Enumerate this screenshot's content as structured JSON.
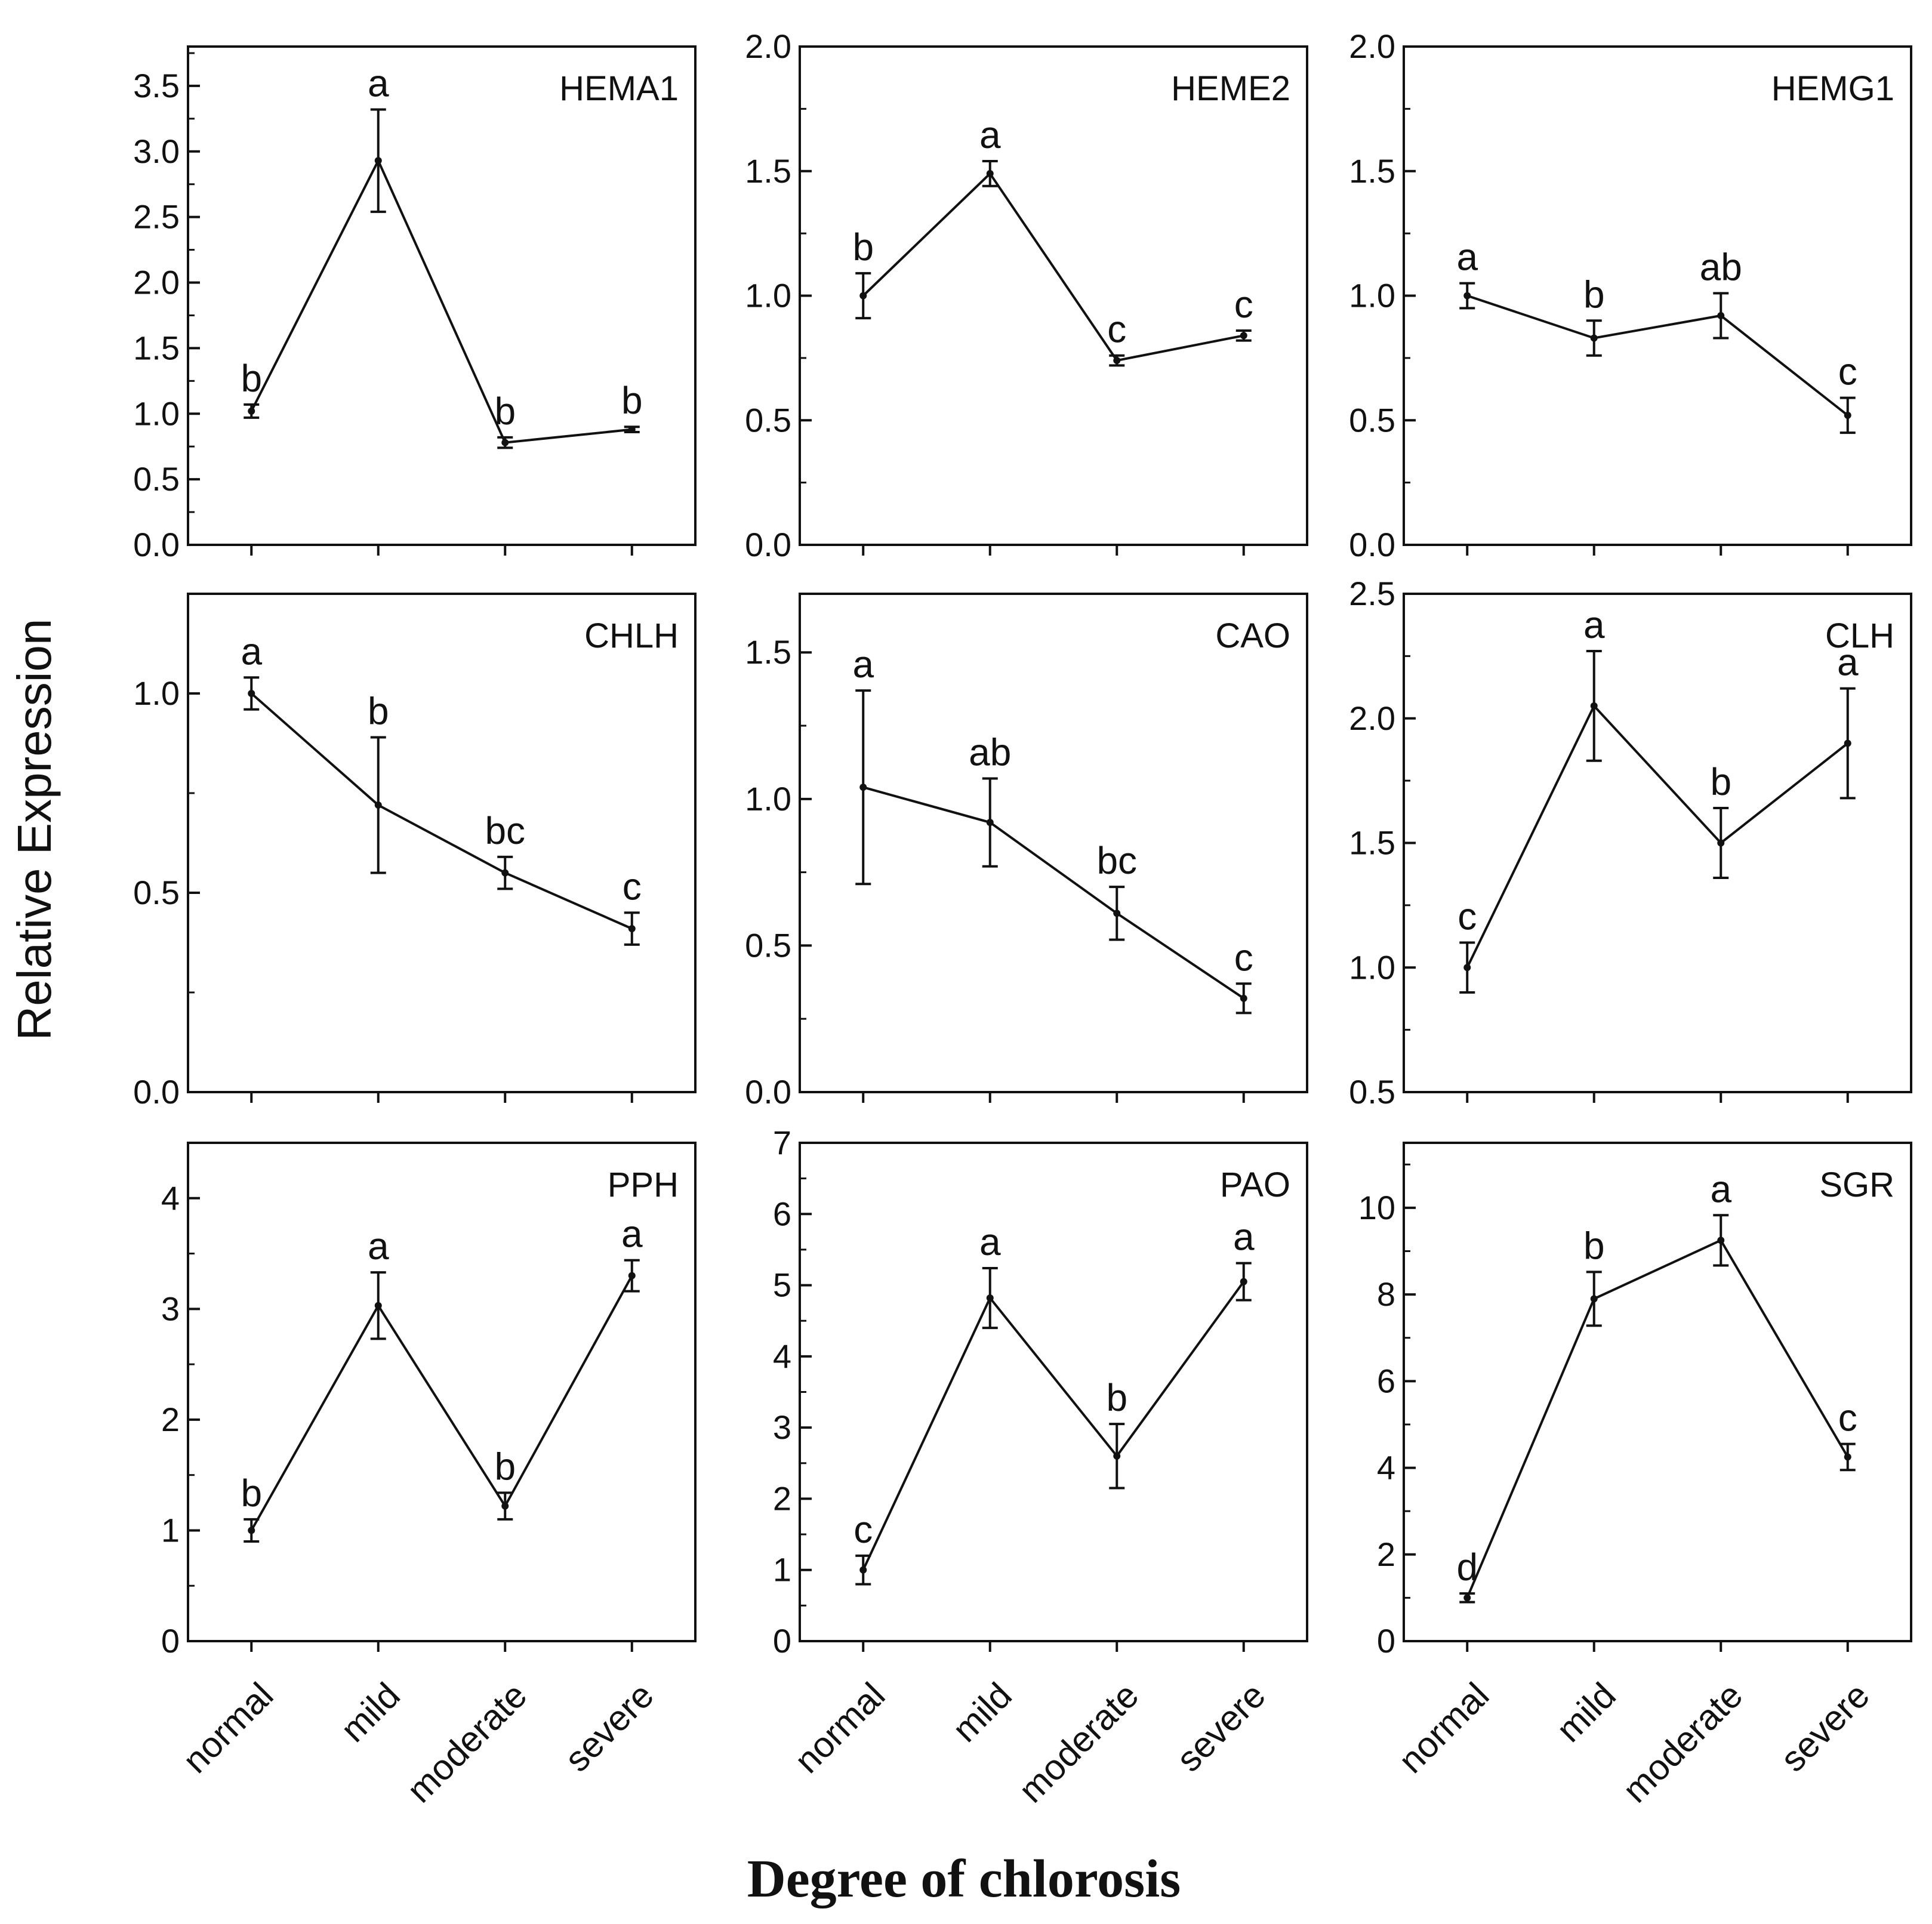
{
  "figure": {
    "ylabel": "Relative Expression",
    "xlabel": "Degree of chlorosis"
  },
  "chart_data": [
    {
      "type": "line",
      "title": "HEMA1",
      "categories": [
        "normal",
        "mild",
        "moderate",
        "severe"
      ],
      "values": [
        1.02,
        2.93,
        0.78,
        0.88
      ],
      "errors": [
        0.05,
        0.39,
        0.04,
        0.02
      ],
      "letters": [
        "b",
        "a",
        "b",
        "b"
      ],
      "ylim": [
        0,
        3.8
      ],
      "yticks": [
        0.0,
        0.5,
        1.0,
        1.5,
        2.0,
        2.5,
        3.0,
        3.5
      ],
      "tick_labels": [
        "0.0",
        "0.5",
        "1.0",
        "1.5",
        "2.0",
        "2.5",
        "3.0",
        "3.5"
      ]
    },
    {
      "type": "line",
      "title": "HEME2",
      "categories": [
        "normal",
        "mild",
        "moderate",
        "severe"
      ],
      "values": [
        1.0,
        1.49,
        0.74,
        0.84
      ],
      "errors": [
        0.09,
        0.05,
        0.02,
        0.02
      ],
      "letters": [
        "b",
        "a",
        "c",
        "c"
      ],
      "ylim": [
        0,
        2.0
      ],
      "yticks": [
        0.0,
        0.5,
        1.0,
        1.5,
        2.0
      ],
      "tick_labels": [
        "0.0",
        "0.5",
        "1.0",
        "1.5",
        "2.0"
      ]
    },
    {
      "type": "line",
      "title": "HEMG1",
      "categories": [
        "normal",
        "mild",
        "moderate",
        "severe"
      ],
      "values": [
        1.0,
        0.83,
        0.92,
        0.52
      ],
      "errors": [
        0.05,
        0.07,
        0.09,
        0.07
      ],
      "letters": [
        "a",
        "b",
        "ab",
        "c"
      ],
      "ylim": [
        0,
        2.0
      ],
      "yticks": [
        0.0,
        0.5,
        1.0,
        1.5,
        2.0
      ],
      "tick_labels": [
        "0.0",
        "0.5",
        "1.0",
        "1.5",
        "2.0"
      ]
    },
    {
      "type": "line",
      "title": "CHLH",
      "categories": [
        "normal",
        "mild",
        "moderate",
        "severe"
      ],
      "values": [
        1.0,
        0.72,
        0.55,
        0.41
      ],
      "errors": [
        0.04,
        0.17,
        0.04,
        0.04
      ],
      "letters": [
        "a",
        "b",
        "bc",
        "c"
      ],
      "ylim": [
        0,
        1.25
      ],
      "yticks": [
        0.0,
        0.5,
        1.0
      ],
      "tick_labels": [
        "0.0",
        "0.5",
        "1.0"
      ]
    },
    {
      "type": "line",
      "title": "CAO",
      "categories": [
        "normal",
        "mild",
        "moderate",
        "severe"
      ],
      "values": [
        1.04,
        0.92,
        0.61,
        0.32
      ],
      "errors": [
        0.33,
        0.15,
        0.09,
        0.05
      ],
      "letters": [
        "a",
        "ab",
        "bc",
        "c"
      ],
      "ylim": [
        0,
        1.7
      ],
      "yticks": [
        0.0,
        0.5,
        1.0,
        1.5
      ],
      "tick_labels": [
        "0.0",
        "0.5",
        "1.0",
        "1.5"
      ]
    },
    {
      "type": "line",
      "title": "CLH",
      "categories": [
        "normal",
        "mild",
        "moderate",
        "severe"
      ],
      "values": [
        1.0,
        2.05,
        1.5,
        1.9
      ],
      "errors": [
        0.1,
        0.22,
        0.14,
        0.22
      ],
      "letters": [
        "c",
        "a",
        "b",
        "a"
      ],
      "ylim": [
        0.5,
        2.5
      ],
      "yticks": [
        0.5,
        1.0,
        1.5,
        2.0,
        2.5
      ],
      "tick_labels": [
        "0.5",
        "1.0",
        "1.5",
        "2.0",
        "2.5"
      ]
    },
    {
      "type": "line",
      "title": "PPH",
      "categories": [
        "normal",
        "mild",
        "moderate",
        "severe"
      ],
      "values": [
        1.0,
        3.03,
        1.22,
        3.3
      ],
      "errors": [
        0.1,
        0.3,
        0.12,
        0.14
      ],
      "letters": [
        "b",
        "a",
        "b",
        "a"
      ],
      "ylim": [
        0,
        4.5
      ],
      "yticks": [
        0,
        1,
        2,
        3,
        4
      ],
      "tick_labels": [
        "0",
        "1",
        "2",
        "3",
        "4"
      ]
    },
    {
      "type": "line",
      "title": "PAO",
      "categories": [
        "normal",
        "mild",
        "moderate",
        "severe"
      ],
      "values": [
        1.0,
        4.82,
        2.6,
        5.05
      ],
      "errors": [
        0.2,
        0.42,
        0.45,
        0.26
      ],
      "letters": [
        "c",
        "a",
        "b",
        "a"
      ],
      "ylim": [
        0,
        7
      ],
      "yticks": [
        0,
        1,
        2,
        3,
        4,
        5,
        6,
        7
      ],
      "tick_labels": [
        "0",
        "1",
        "2",
        "3",
        "4",
        "5",
        "6",
        "7"
      ]
    },
    {
      "type": "line",
      "title": "SGR",
      "categories": [
        "normal",
        "mild",
        "moderate",
        "severe"
      ],
      "values": [
        1.0,
        7.9,
        9.25,
        4.25
      ],
      "errors": [
        0.1,
        0.62,
        0.58,
        0.3
      ],
      "letters": [
        "d",
        "b",
        "a",
        "c"
      ],
      "ylim": [
        0,
        11.5
      ],
      "yticks": [
        0,
        2,
        4,
        6,
        8,
        10
      ],
      "tick_labels": [
        "0",
        "2",
        "4",
        "6",
        "8",
        "10"
      ]
    }
  ]
}
